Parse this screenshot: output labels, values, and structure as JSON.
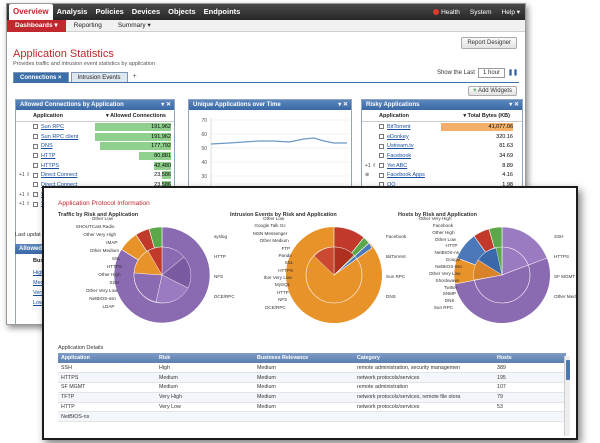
{
  "topbar": {
    "nav": [
      "Overview",
      "Analysis",
      "Policies",
      "Devices",
      "Objects",
      "Endpoints"
    ],
    "right": [
      "Health",
      "System",
      "Help ▾"
    ]
  },
  "subnav": [
    "Dashboards ▾",
    "Reporting",
    "Summary ▾"
  ],
  "report_designer": "Report Designer",
  "page": {
    "title": "Application Statistics",
    "subtitle": "Provides traffic and intrusion event statistics by application"
  },
  "tabs": [
    "Connections",
    "Intrusion Events"
  ],
  "show_last": {
    "label": "Show the Last",
    "value": "1 hour"
  },
  "add_widgets": "Add Widgets",
  "allowed_widget": {
    "title": "Allowed Connections by Application",
    "col_app": "Application",
    "col_val": "▾ Allowed Connections",
    "rows": [
      {
        "pre": "",
        "name": "Sun RPC",
        "value": "191,962",
        "pct": 1.0
      },
      {
        "pre": "",
        "name": "Sun RPC client",
        "value": "191,962",
        "pct": 1.0
      },
      {
        "pre": "",
        "name": "DNS",
        "value": "177,792",
        "pct": 0.93
      },
      {
        "pre": "",
        "name": "HTTP",
        "value": "80,881",
        "pct": 0.42
      },
      {
        "pre": "",
        "name": "HTTPS",
        "value": "42,480",
        "pct": 0.22
      },
      {
        "pre": "+1 ⇧",
        "name": "Direct Connect",
        "value": "23,586",
        "pct": 0.12
      },
      {
        "pre": "",
        "name": "Direct Connect",
        "value": "23,586",
        "pct": 0.12
      },
      {
        "pre": "+1 ⇧",
        "name": "S",
        "value": "",
        "pct": 0
      },
      {
        "pre": "+1 ⇧",
        "name": "S",
        "value": "",
        "pct": 0
      }
    ],
    "last_updated": "Last updat",
    "allowed_to": "Allowed t",
    "bus": "Busi",
    "small_rows": [
      "High",
      "Medium",
      "Very L",
      "Low"
    ]
  },
  "unique_widget": {
    "title": "Unique Applications over Time",
    "yticks": [
      "70",
      "60",
      "50",
      "40",
      "30",
      "20",
      "10"
    ]
  },
  "risky_widget": {
    "title": "Risky Applications",
    "col_app": "Application",
    "col_val": "▾ Total Bytes (KB)",
    "rows": [
      {
        "pre": "",
        "name": "BitTorrent",
        "value": "41,077.06",
        "pct": 1.0
      },
      {
        "pre": "",
        "name": "eDonkey",
        "value": "320.16",
        "pct": 0
      },
      {
        "pre": "",
        "name": "Ustream.tv",
        "value": "81.63",
        "pct": 0
      },
      {
        "pre": "",
        "name": "Facebook",
        "value": "34.69",
        "pct": 0
      },
      {
        "pre": "+1 ⇧",
        "name": "Yet ABC",
        "value": "8.89",
        "pct": 0
      },
      {
        "pre": "⊕",
        "name": "Facebook Apps",
        "value": "4.16",
        "pct": 0
      },
      {
        "pre": "",
        "name": "QQ",
        "value": "1.98",
        "pct": 0
      }
    ]
  },
  "front": {
    "title": "Application Protocol Information",
    "pies": [
      {
        "title": "Traffic by Risk and Application",
        "labels": [
          "Other Low",
          "SHOUTCast Radio",
          "Other Very High",
          "IMAP",
          "Other Medium",
          "SSL",
          "HTTPS",
          "Other High",
          "SSH",
          "Other Very Low",
          "NetBIOS-ssn",
          "LDAP",
          "syslog",
          "HTTP",
          "NFS",
          "DCE/RPC"
        ]
      },
      {
        "title": "Intrusion Events by Risk and Application",
        "labels": [
          "Other Low",
          "Google Talk Gc",
          "MSN Messenger",
          "Other Medium",
          "FTP",
          "Pando",
          "SSL",
          "HTTPS",
          "ther Very Low",
          "MySQL",
          "HTTP",
          "NFS",
          "DCE/RPC",
          "Facebook",
          "BitTorrent",
          "Sun RPC",
          "DNS"
        ]
      },
      {
        "title": "Hosts by Risk and Application",
        "labels": [
          "Other Very High",
          "Facebook",
          "Other High",
          "Other Low",
          "HTTP",
          "NetBIOS-ns",
          "Google",
          "NetBIOS-ssn",
          "Other Very Low",
          "Shockwave",
          "Twitter",
          "SNMP",
          "DNS",
          "Sun RPC",
          "SSH",
          "HTTPS",
          "SF MGMT",
          "Other Medium"
        ]
      }
    ],
    "details_title": "Application Details",
    "table_headers": [
      "Application",
      "Risk",
      "Business Relevance",
      "Category",
      "Hosts"
    ],
    "table_rows": [
      [
        "SSH",
        "High",
        "Medium",
        "remote administration, security managemen",
        "389"
      ],
      [
        "HTTPS",
        "Medium",
        "Medium",
        "network protocols/services",
        "195"
      ],
      [
        "SF MGMT",
        "Medium",
        "Medium",
        "remote administration",
        "107"
      ],
      [
        "TFTP",
        "Very High",
        "Medium",
        "network protocols/services, remote file stora",
        "79"
      ],
      [
        "HTTP",
        "Very Low",
        "Medium",
        "network protocols/services",
        "53"
      ],
      [
        "NetBIOS-ns",
        "",
        "",
        "",
        ""
      ]
    ]
  },
  "colors": {
    "accent_red": "#c0282d",
    "header_blue": "#3c6ea8",
    "bar_green": "#8fd08f",
    "bar_orange": "#f3b06a",
    "pie_purple": "#8a6ab0",
    "pie_orange": "#e8922a",
    "pie_red": "#c0392b",
    "pie_blue": "#4a78b8",
    "pie_green": "#5aa84a"
  }
}
